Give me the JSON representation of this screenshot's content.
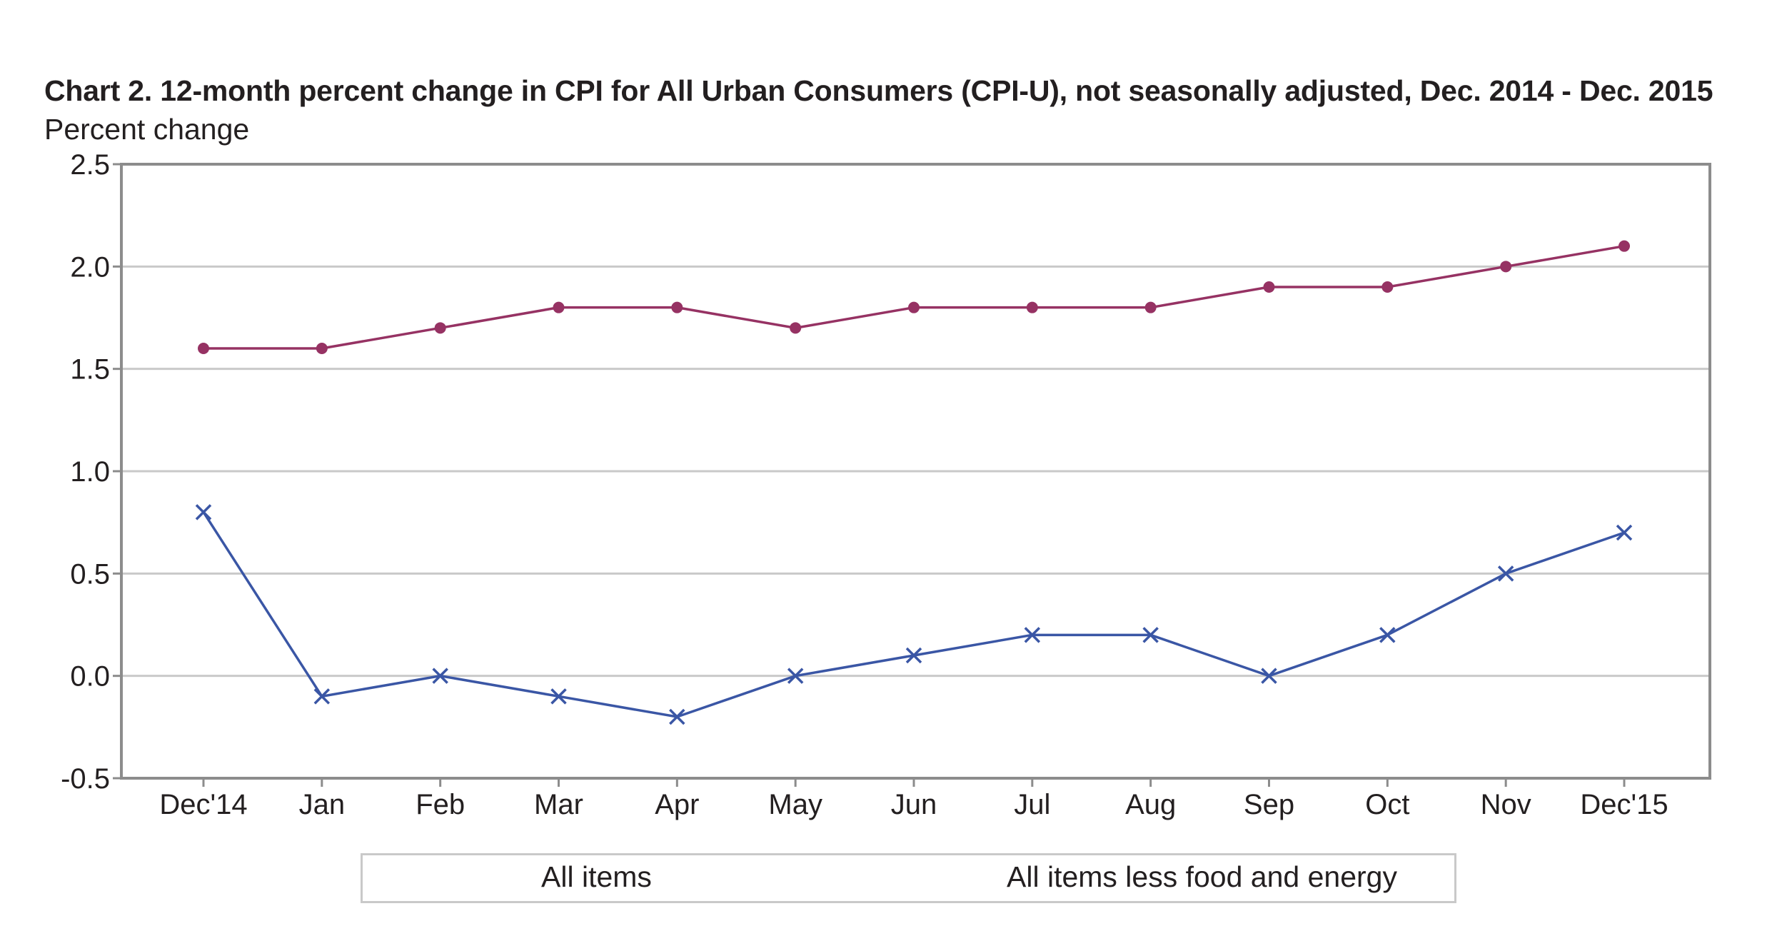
{
  "chart_data": {
    "type": "line",
    "title": "Chart 2. 12-month percent change in CPI for All Urban Consumers (CPI-U), not seasonally adjusted, Dec. 2014 - Dec. 2015",
    "ylabel": "Percent change",
    "xlabel": "",
    "categories": [
      "Dec'14",
      "Jan",
      "Feb",
      "Mar",
      "Apr",
      "May",
      "Jun",
      "Jul",
      "Aug",
      "Sep",
      "Oct",
      "Nov",
      "Dec'15"
    ],
    "ylim": [
      -0.5,
      2.5
    ],
    "yticks": [
      "2.5",
      "2.0",
      "1.5",
      "1.0",
      "0.5",
      "0.0",
      "-0.5"
    ],
    "grid": true,
    "legend_position": "bottom",
    "series": [
      {
        "name": "All items",
        "color": "#3a56a5",
        "marker": "x",
        "values": [
          0.8,
          -0.1,
          0.0,
          -0.1,
          -0.2,
          0.0,
          0.1,
          0.2,
          0.2,
          0.0,
          0.2,
          0.5,
          0.7
        ]
      },
      {
        "name": "All items less food and energy",
        "color": "#963263",
        "marker": "circle",
        "values": [
          1.6,
          1.6,
          1.7,
          1.8,
          1.8,
          1.7,
          1.8,
          1.8,
          1.8,
          1.9,
          1.9,
          2.0,
          2.1
        ]
      }
    ]
  }
}
